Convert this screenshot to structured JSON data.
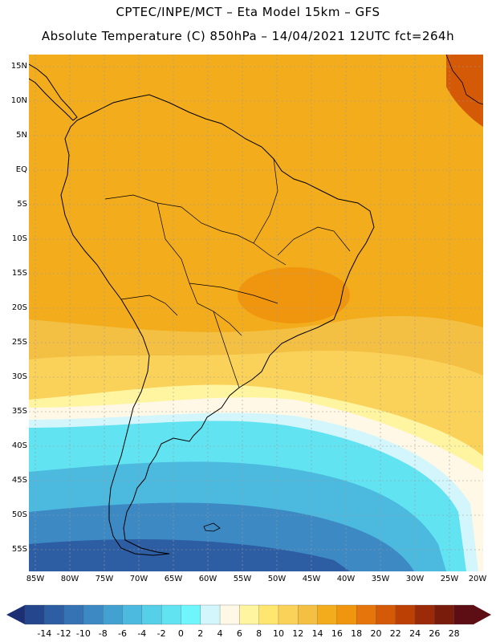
{
  "header": {
    "line1": "CPTEC/INPE/MCT –  Eta Model 15km – GFS",
    "line2": "Absolute Temperature (C) 850hPa – 14/04/2021 12UTC fct=264h"
  },
  "map": {
    "lat_labels": [
      "15N",
      "10N",
      "5N",
      "EQ",
      "5S",
      "10S",
      "15S",
      "20S",
      "25S",
      "30S",
      "35S",
      "40S",
      "45S",
      "50S",
      "55S"
    ],
    "lon_labels": [
      "85W",
      "80W",
      "75W",
      "70W",
      "65W",
      "60W",
      "55W",
      "50W",
      "45W",
      "40W",
      "35W",
      "30W",
      "25W",
      "20W"
    ]
  },
  "colorbar": {
    "tick_labels": [
      "-14",
      "-12",
      "-10",
      "-8",
      "-6",
      "-4",
      "-2",
      "0",
      "2",
      "4",
      "6",
      "8",
      "10",
      "12",
      "14",
      "16",
      "18",
      "20",
      "22",
      "24",
      "26",
      "28"
    ],
    "colors": [
      "#24468c",
      "#2d5da2",
      "#3573b4",
      "#3c89c4",
      "#43a1d2",
      "#4cb9de",
      "#56cfe8",
      "#62e3f2",
      "#6ff6fc",
      "#d2f6fc",
      "#fff8e6",
      "#fff5a0",
      "#ffe66e",
      "#fad25a",
      "#f4c044",
      "#f2ac1c",
      "#f0960e",
      "#e6760c",
      "#d45a08",
      "#bc4004",
      "#9a2a08",
      "#7a1c0c",
      "#5c0e14"
    ]
  }
}
